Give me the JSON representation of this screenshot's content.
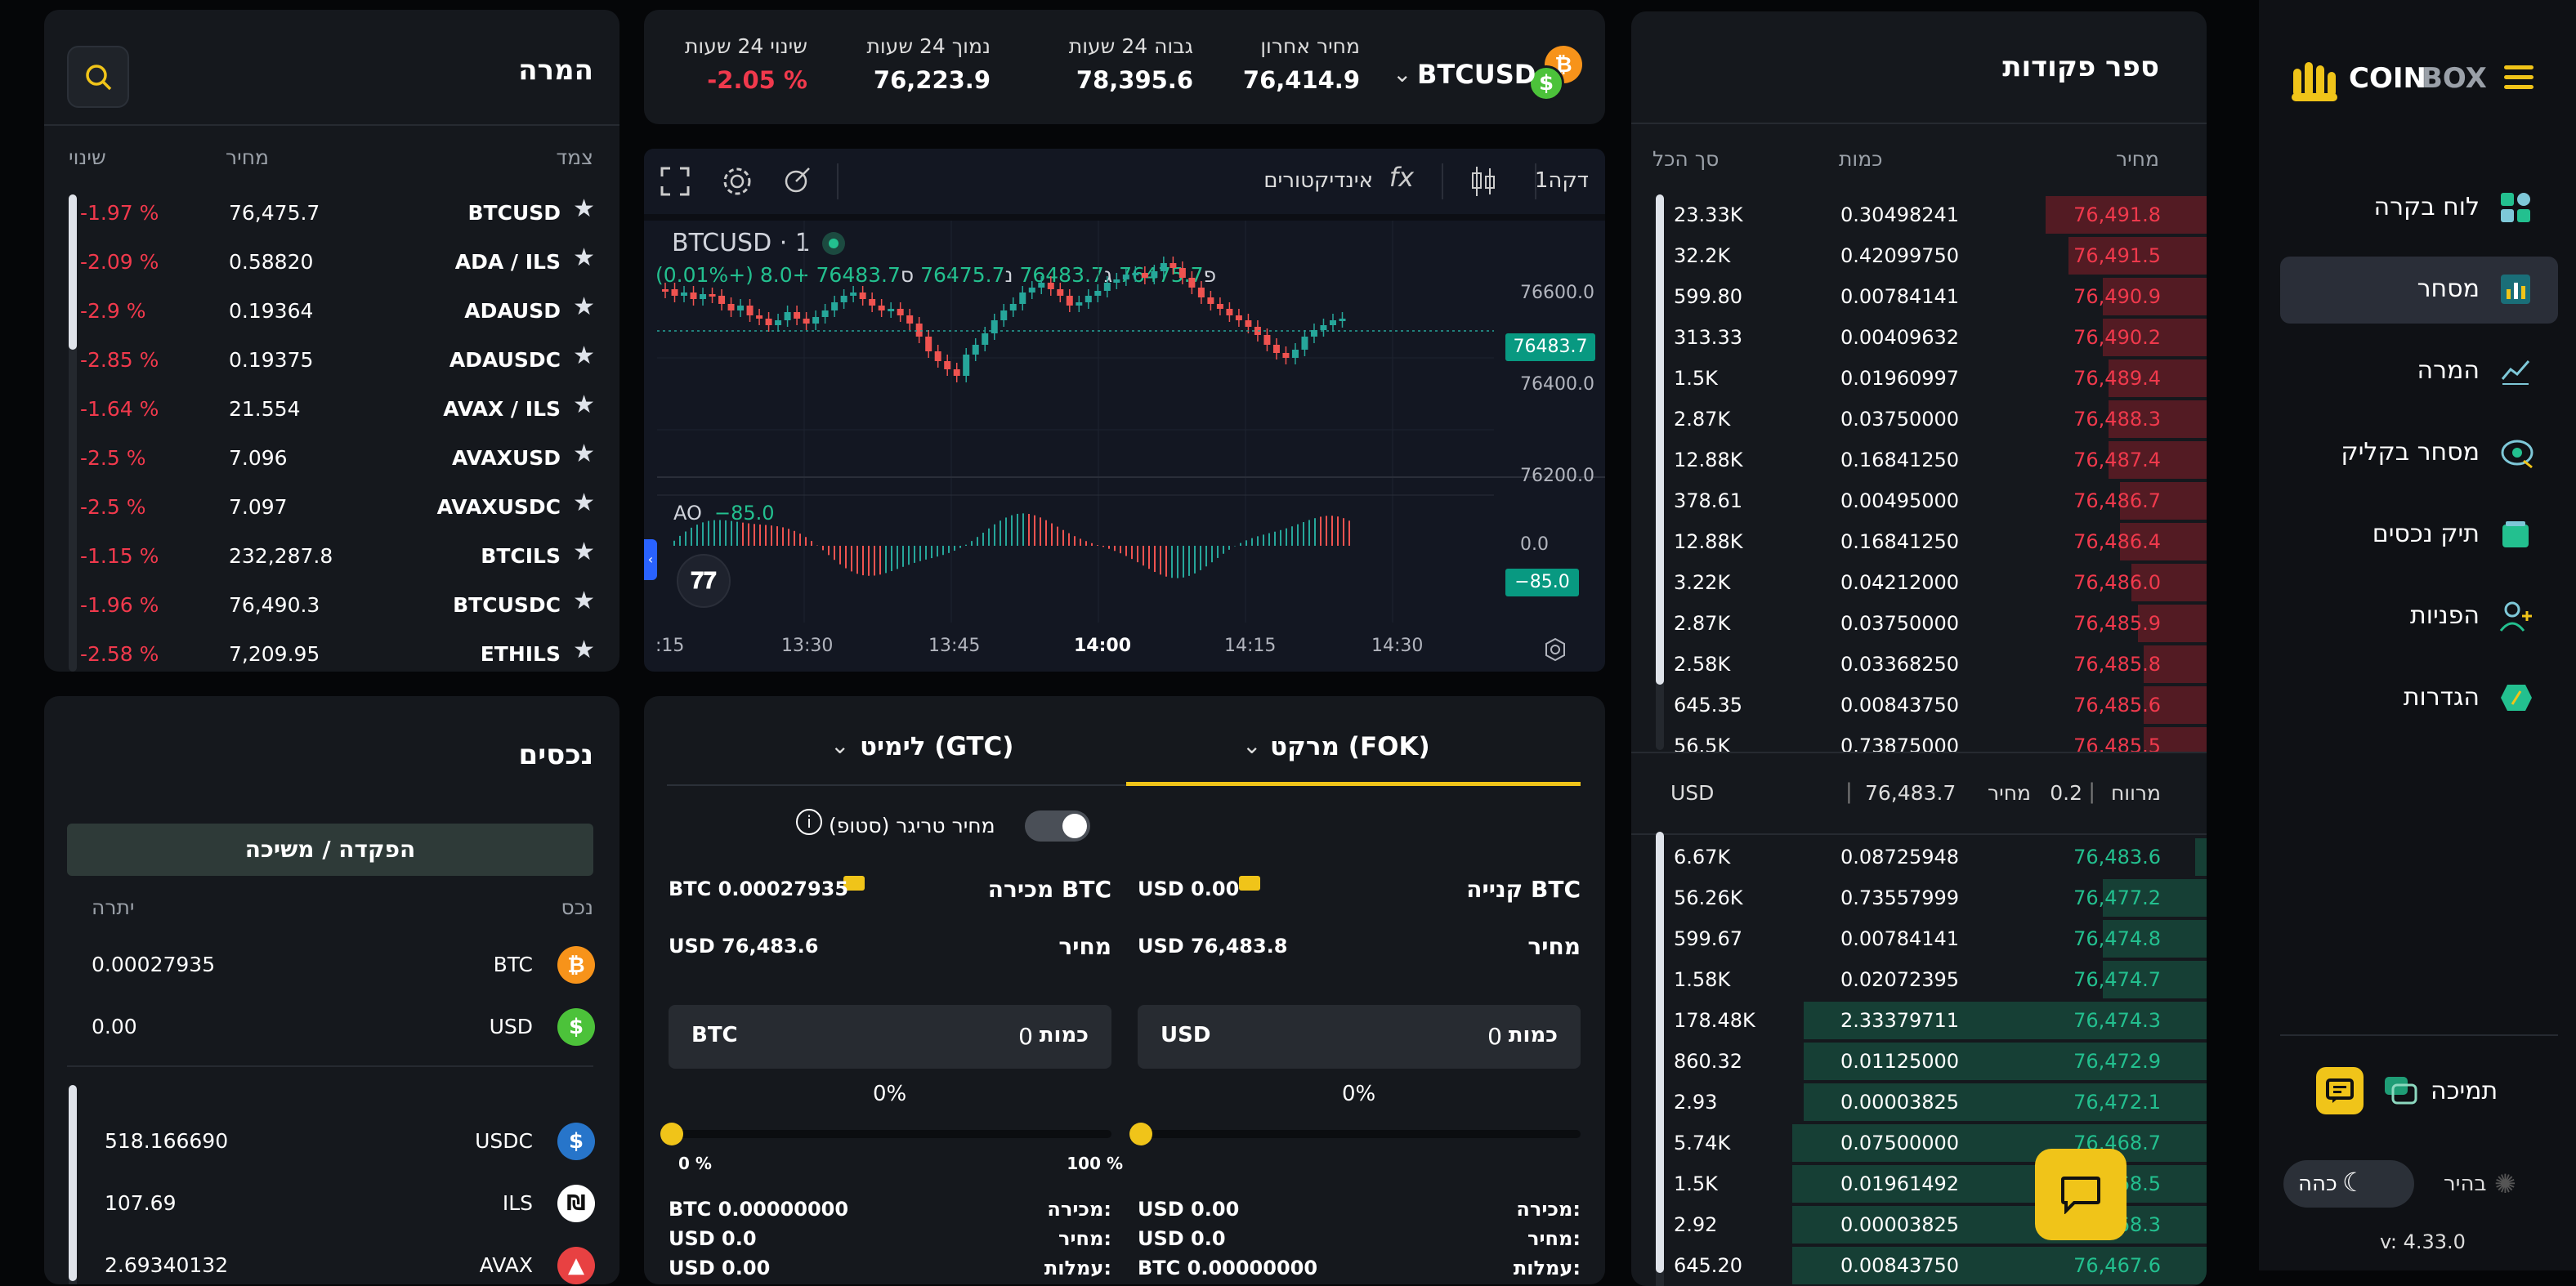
{
  "brand": {
    "name_a": "COIN",
    "name_b": "BOX"
  },
  "sidebar": {
    "items": [
      {
        "label": "לוח בקרה",
        "icon": "dashboard-icon"
      },
      {
        "label": "מסחר",
        "icon": "trade-chart-icon",
        "active": true
      },
      {
        "label": "המרה",
        "icon": "convert-icon"
      },
      {
        "label": "מסחר בקליק",
        "icon": "click-trade-icon"
      },
      {
        "label": "תיק נכסים",
        "icon": "wallet-icon"
      },
      {
        "label": "הפניות",
        "icon": "add-user-icon"
      },
      {
        "label": "הגדרות",
        "icon": "settings-icon"
      }
    ],
    "support": "תמיכה",
    "theme_light": "בהיר",
    "theme_dark": "כהה",
    "version": "v: 4.33.0"
  },
  "orderbook": {
    "title": "ספר פקודות",
    "col_price": "מחיר",
    "col_amount": "כמות",
    "col_total": "סך הכל",
    "asks": [
      {
        "price": "76,491.8",
        "amount": "0.30498241",
        "total": "23.33K",
        "depth": 0.28
      },
      {
        "price": "76,491.5",
        "amount": "0.42099750",
        "total": "32.2K",
        "depth": 0.24
      },
      {
        "price": "76,490.9",
        "amount": "0.00784141",
        "total": "599.80",
        "depth": 0.18
      },
      {
        "price": "76,490.2",
        "amount": "0.00409632",
        "total": "313.33",
        "depth": 0.18
      },
      {
        "price": "76,489.4",
        "amount": "0.01960997",
        "total": "1.5K",
        "depth": 0.17
      },
      {
        "price": "76,488.3",
        "amount": "0.03750000",
        "total": "2.87K",
        "depth": 0.17
      },
      {
        "price": "76,487.4",
        "amount": "0.16841250",
        "total": "12.88K",
        "depth": 0.17
      },
      {
        "price": "76,486.7",
        "amount": "0.00495000",
        "total": "378.61",
        "depth": 0.15
      },
      {
        "price": "76,486.4",
        "amount": "0.16841250",
        "total": "12.88K",
        "depth": 0.15
      },
      {
        "price": "76,486.0",
        "amount": "0.04212000",
        "total": "3.22K",
        "depth": 0.13
      },
      {
        "price": "76,485.9",
        "amount": "0.03750000",
        "total": "2.87K",
        "depth": 0.12
      },
      {
        "price": "76,485.8",
        "amount": "0.03368250",
        "total": "2.58K",
        "depth": 0.11
      },
      {
        "price": "76,485.6",
        "amount": "0.00843750",
        "total": "645.35",
        "depth": 0.11
      },
      {
        "price": "76,485.5",
        "amount": "0.73875000",
        "total": "56.5K",
        "depth": 0.11
      }
    ],
    "spread_label": "מרווח",
    "spread_value": "0.2",
    "mid_label": "מחיר",
    "mid_value": "76,483.7",
    "mid_currency": "USD",
    "bids": [
      {
        "price": "76,483.6",
        "amount": "0.08725948",
        "total": "6.67K",
        "depth": 0.02
      },
      {
        "price": "76,477.2",
        "amount": "0.73557999",
        "total": "56.26K",
        "depth": 0.18
      },
      {
        "price": "76,474.8",
        "amount": "0.00784141",
        "total": "599.67",
        "depth": 0.18
      },
      {
        "price": "76,474.7",
        "amount": "0.02072395",
        "total": "1.58K",
        "depth": 0.18
      },
      {
        "price": "76,474.3",
        "amount": "2.33379711",
        "total": "178.48K",
        "depth": 0.7
      },
      {
        "price": "76,472.9",
        "amount": "0.01125000",
        "total": "860.32",
        "depth": 0.7
      },
      {
        "price": "76,472.1",
        "amount": "0.00003825",
        "total": "2.93",
        "depth": 0.7
      },
      {
        "price": "76,468.7",
        "amount": "0.07500000",
        "total": "5.74K",
        "depth": 0.72
      },
      {
        "price": "76,468.5",
        "amount": "0.01961492",
        "total": "1.5K",
        "depth": 0.72
      },
      {
        "price": "76,468.3",
        "amount": "0.00003825",
        "total": "2.92",
        "depth": 0.72
      },
      {
        "price": "76,467.6",
        "amount": "0.00843750",
        "total": "645.20",
        "depth": 0.72
      }
    ]
  },
  "ticker": {
    "pair": "BTCUSD",
    "last_label": "מחיר אחרון",
    "last": "76,414.9",
    "high_label": "גבוה 24 שעות",
    "high": "78,395.6",
    "low_label": "נמוך 24 שעות",
    "low": "76,223.9",
    "change_label": "שינוי 24 שעות",
    "change": "-2.05 %"
  },
  "chart": {
    "interval": "1דקה",
    "indicators": "אינדיקטורים",
    "symbol": "BTCUSD · 1",
    "ohlc": {
      "o_label": "פ",
      "o": "76475.7",
      "h_label": "ג",
      "h": "76483.7",
      "l_label": "נ",
      "l": "76475.7",
      "c_label": "ס",
      "c": "76483.7",
      "chg": "+8.0 (+0.01%)"
    },
    "current_price": "76483.7",
    "y_ticks": [
      "76600.0",
      "76400.0",
      "76200.0"
    ],
    "x_ticks": [
      ":15",
      "13:30",
      "13:45",
      "14:00",
      "14:15",
      "14:30"
    ],
    "ao_label": "AO",
    "ao_value": "−85.0",
    "ao_zero": "0.0",
    "ao_badge": "−85.0"
  },
  "convert": {
    "title": "המרה",
    "col_pair": "צמד",
    "col_price": "מחיר",
    "col_change": "שינוי",
    "rows": [
      {
        "pair": "BTCUSD",
        "price": "76,475.7",
        "change": "-1.97 %"
      },
      {
        "pair": "ADA / ILS",
        "price": "0.58820",
        "change": "-2.09 %"
      },
      {
        "pair": "ADAUSD",
        "price": "0.19364",
        "change": "-2.9 %"
      },
      {
        "pair": "ADAUSDC",
        "price": "0.19375",
        "change": "-2.85 %"
      },
      {
        "pair": "AVAX / ILS",
        "price": "21.554",
        "change": "-1.64 %"
      },
      {
        "pair": "AVAXUSD",
        "price": "7.096",
        "change": "-2.5 %"
      },
      {
        "pair": "AVAXUSDC",
        "price": "7.097",
        "change": "-2.5 %"
      },
      {
        "pair": "BTCILS",
        "price": "232,287.8",
        "change": "-1.15 %"
      },
      {
        "pair": "BTCUSDC",
        "price": "76,490.3",
        "change": "-1.96 %"
      },
      {
        "pair": "ETHILS",
        "price": "7,209.95",
        "change": "-2.58 %"
      }
    ]
  },
  "trade": {
    "tab_market": "מרקט (FOK)",
    "tab_limit": "לימיט (GTC)",
    "trigger_label": "מחיר טריגר (סטופ)",
    "buy": {
      "title": "קנייה BTC",
      "balance": "USD 0.00",
      "price_label": "מחיר",
      "price": "USD 76,483.8",
      "qty_label": "כמות",
      "qty": "0",
      "qty_cur": "USD",
      "pct": "0%",
      "s1_label": "מכירה:",
      "s1": "USD 0.00",
      "s2_label": "מחיר:",
      "s2": "USD 0.0",
      "s3_label": "עמלות:",
      "s3": "BTC 0.00000000"
    },
    "sell": {
      "title": "מכירה BTC",
      "balance": "BTC 0.00027935",
      "price_label": "מחיר",
      "price": "USD 76,483.6",
      "qty_label": "כמות",
      "qty": "0",
      "qty_cur": "BTC",
      "pct": "0%",
      "slider_min": "0 %",
      "slider_max": "100 %",
      "s1_label": "מכירה:",
      "s1": "BTC 0.00000000",
      "s2_label": "מחיר:",
      "s2": "USD 0.0",
      "s3_label": "עמלות:",
      "s3": "USD 0.00"
    }
  },
  "assets": {
    "title": "נכסים",
    "deposit_button": "הפקדה / משיכה",
    "col_asset": "נכס",
    "col_balance": "יתרה",
    "rows": [
      {
        "symbol": "BTC",
        "balance": "0.00027935",
        "color": "#f7931a",
        "glyph": "₿"
      },
      {
        "symbol": "USD",
        "balance": "0.00",
        "color": "#4cc23a",
        "glyph": "$"
      },
      {
        "symbol": "USDC",
        "balance": "518.166690",
        "color": "#2775ca",
        "glyph": "$"
      },
      {
        "symbol": "ILS",
        "balance": "107.69",
        "color": "#ffffff",
        "glyph": "₪"
      },
      {
        "symbol": "AVAX",
        "balance": "2.69340132",
        "color": "#e84142",
        "glyph": "▲"
      }
    ]
  },
  "colors": {
    "accent": "#f0c419",
    "up": "#23c08f",
    "down": "#f0394c"
  }
}
